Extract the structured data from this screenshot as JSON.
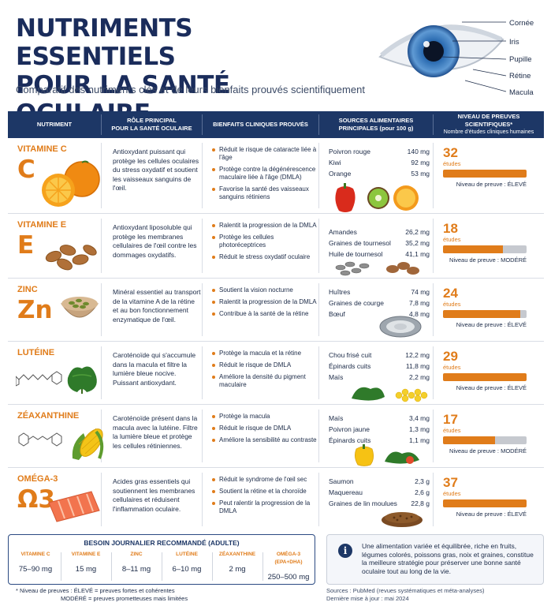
{
  "title_line1": "NUTRIMENTS ESSENTIELS",
  "title_line2": "POUR LA SANTÉ OCULAIRE",
  "subtitle": "Comparatif des nutriments clés et de leurs bienfaits prouvés scientifiquement",
  "eye_labels": [
    "Cornée",
    "Iris",
    "Pupille",
    "Rétine",
    "Macula"
  ],
  "headers": {
    "nutrient": "NUTRIMENT",
    "role1": "RÔLE PRINCIPAL",
    "role2": "POUR LA SANTÉ OCULAIRE",
    "benefits": "BIENFAITS CLINIQUES PROUVÉS",
    "sources1": "SOURCES ALIMENTAIRES",
    "sources2": "PRINCIPALES (pour 100 g)",
    "evidence1": "NIVEAU DE PREUVES SCIENTIFIQUES*",
    "evidence2": "Nombre d'études cliniques humaines"
  },
  "rows": [
    {
      "name": "VITAMINE C",
      "symbol": "C",
      "role": "Antioxydant puissant qui protège les cellules oculaires du stress oxydatif et soutient les vaisseaux sanguins de l'œil.",
      "benefits": [
        "Réduit le risque de cataracte liée à l'âge",
        "Protège contre la dégénérescence maculaire liée à l'âge (DMLA)",
        "Favorise la santé des vaisseaux sanguins rétiniens"
      ],
      "sources": [
        {
          "food": "Poivron rouge",
          "amount": "140 mg"
        },
        {
          "food": "Kiwi",
          "amount": "92 mg"
        },
        {
          "food": "Orange",
          "amount": "53 mg"
        }
      ],
      "studies": "32",
      "studies_unit": "études",
      "level": "Niveau de preuve : ÉLEVÉ",
      "level_fraction": 1.0
    },
    {
      "name": "VITAMINE E",
      "symbol": "E",
      "role": "Antioxydant liposoluble qui protège les membranes cellulaires de l'œil contre les dommages oxydatifs.",
      "benefits": [
        "Ralentit la progression de la DMLA",
        "Protège les cellules photoréceptrices",
        "Réduit le stress oxydatif oculaire"
      ],
      "sources": [
        {
          "food": "Amandes",
          "amount": "26,2 mg"
        },
        {
          "food": "Graines de tournesol",
          "amount": "35,2 mg"
        },
        {
          "food": "Huile de tournesol",
          "amount": "41,1 mg"
        }
      ],
      "studies": "18",
      "studies_unit": "études",
      "level": "Niveau de preuve : MODÉRÉ",
      "level_fraction": 0.72
    },
    {
      "name": "ZINC",
      "symbol": "Zn",
      "role": "Minéral essentiel au transport de la vitamine A de la rétine et au bon fonctionnement enzymatique de l'œil.",
      "benefits": [
        "Soutient la vision nocturne",
        "Ralentit la progression de la DMLA",
        "Contribue à la santé de la rétine"
      ],
      "sources": [
        {
          "food": "Huîtres",
          "amount": "74 mg"
        },
        {
          "food": "Graines de courge",
          "amount": "7,8 mg"
        },
        {
          "food": "Bœuf",
          "amount": "4,8 mg"
        }
      ],
      "studies": "24",
      "studies_unit": "études",
      "level": "Niveau de preuve : ÉLEVÉ",
      "level_fraction": 0.92
    },
    {
      "name": "LUTÉINE",
      "symbol": "",
      "role": "Caroténoïde qui s'accumule dans la macula et filtre la lumière bleue nocive. Puissant antioxydant.",
      "benefits": [
        "Protège la macula et la rétine",
        "Réduit le risque de DMLA",
        "Améliore la densité du pigment maculaire"
      ],
      "sources": [
        {
          "food": "Chou frisé cuit",
          "amount": "12,2 mg"
        },
        {
          "food": "Épinards cuits",
          "amount": "11,8 mg"
        },
        {
          "food": "Maïs",
          "amount": "2,2 mg"
        }
      ],
      "studies": "29",
      "studies_unit": "études",
      "level": "Niveau de preuve : ÉLEVÉ",
      "level_fraction": 1.0
    },
    {
      "name": "ZÉAXANTHINE",
      "symbol": "",
      "role": "Caroténoïde présent dans la macula avec la lutéine. Filtre la lumière bleue et protège les cellules rétiniennes.",
      "benefits": [
        "Protège la macula",
        "Réduit le risque de DMLA",
        "Améliore la sensibilité au contraste"
      ],
      "sources": [
        {
          "food": "Maïs",
          "amount": "3,4 mg"
        },
        {
          "food": "Poivron jaune",
          "amount": "1,3 mg"
        },
        {
          "food": "Épinards cuits",
          "amount": "1,1 mg"
        }
      ],
      "studies": "17",
      "studies_unit": "études",
      "level": "Niveau de preuve : MODÉRÉ",
      "level_fraction": 0.62
    },
    {
      "name": "OMÉGA-3",
      "symbol": "Ω3",
      "role": "Acides gras essentiels qui soutiennent les membranes cellulaires et réduisent l'inflammation oculaire.",
      "benefits": [
        "Réduit le syndrome de l'œil sec",
        "Soutient la rétine et la choroïde",
        "Peut ralentir la progression de la DMLA"
      ],
      "sources": [
        {
          "food": "Saumon",
          "amount": "2,3 g"
        },
        {
          "food": "Maquereau",
          "amount": "2,6 g"
        },
        {
          "food": "Graines de lin moulues",
          "amount": "22,8 g"
        }
      ],
      "studies": "37",
      "studies_unit": "études",
      "level": "Niveau de preuve : ÉLEVÉ",
      "level_fraction": 1.0
    }
  ],
  "requirements": {
    "title": "BESOIN JOURNALIER RECOMMANDÉ (ADULTE)",
    "items": [
      {
        "label": "VITAMINE C",
        "value": "75–90 mg"
      },
      {
        "label": "VITAMINE E",
        "value": "15 mg"
      },
      {
        "label": "ZINC",
        "value": "8–11 mg"
      },
      {
        "label": "LUTÉINE",
        "value": "6–10 mg"
      },
      {
        "label": "ZÉAXANTHINE",
        "value": "2 mg"
      },
      {
        "label": "OMÉGA-3 (EPA+DHA)",
        "value": "250–500 mg"
      }
    ]
  },
  "info_text": "Une alimentation variée et équilibrée, riche en fruits, légumes colorés, poissons gras, noix et graines, constitue la meilleure stratégie pour préserver une bonne santé oculaire tout au long de la vie.",
  "footnote_line1": "* Niveau de preuves : ÉLEVÉ = preuves fortes et cohérentes",
  "footnote_line2": "MODÉRÉ = preuves prometteuses mais limitées",
  "sources_line": "Sources : PubMed (revues systématiques et méta-analyses)",
  "updated_line": "Dernière mise à jour : mai 2024",
  "colors": {
    "navy": "#1d3766",
    "accent": "#e07c1a",
    "bar_bg": "#c6c9cf"
  }
}
